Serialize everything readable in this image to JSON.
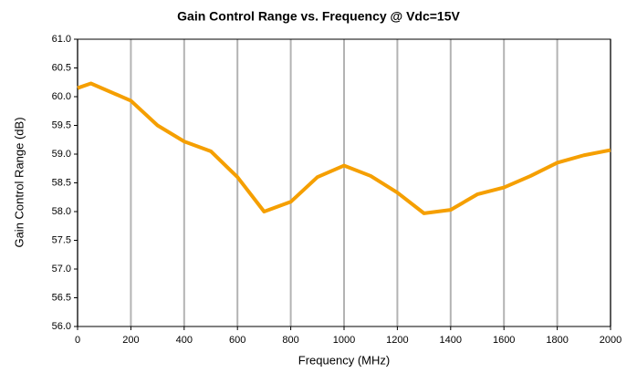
{
  "chart_data": {
    "type": "line",
    "title": "Gain Control Range vs. Frequency @ Vdc=15V",
    "x_label": "Frequency (MHz)",
    "y_label": "Gain Control Range (dB)",
    "x": [
      0,
      50,
      200,
      300,
      400,
      500,
      600,
      700,
      800,
      900,
      1000,
      1100,
      1200,
      1300,
      1400,
      1500,
      1600,
      1700,
      1800,
      1900,
      2000
    ],
    "series": [
      {
        "name": "Gain Control Range",
        "color": "#f59f00",
        "values": [
          60.15,
          60.23,
          59.93,
          59.5,
          59.22,
          59.05,
          58.6,
          58.0,
          58.17,
          58.6,
          58.8,
          58.62,
          58.33,
          57.97,
          58.03,
          58.3,
          58.42,
          58.62,
          58.85,
          58.98,
          59.07
        ]
      }
    ],
    "xlim": [
      0,
      2000
    ],
    "xticks": [
      0,
      200,
      400,
      600,
      800,
      1000,
      1200,
      1400,
      1600,
      1800,
      2000
    ],
    "ylim": [
      56,
      61
    ],
    "yticks": [
      {
        "value": 56,
        "label": "56.0"
      },
      {
        "value": 56.5,
        "label": "56.5"
      },
      {
        "value": 57,
        "label": "57.0"
      },
      {
        "value": 57.5,
        "label": "57.5"
      },
      {
        "value": 58,
        "label": "58.0"
      },
      {
        "value": 58.5,
        "label": "58.5"
      },
      {
        "value": 59,
        "label": "59.0"
      },
      {
        "value": 59.5,
        "label": "59.5"
      },
      {
        "value": 60,
        "label": "60.0"
      },
      {
        "value": 60.5,
        "label": "60.5"
      },
      {
        "value": 61,
        "label": "61.0"
      }
    ],
    "grid": "x"
  }
}
